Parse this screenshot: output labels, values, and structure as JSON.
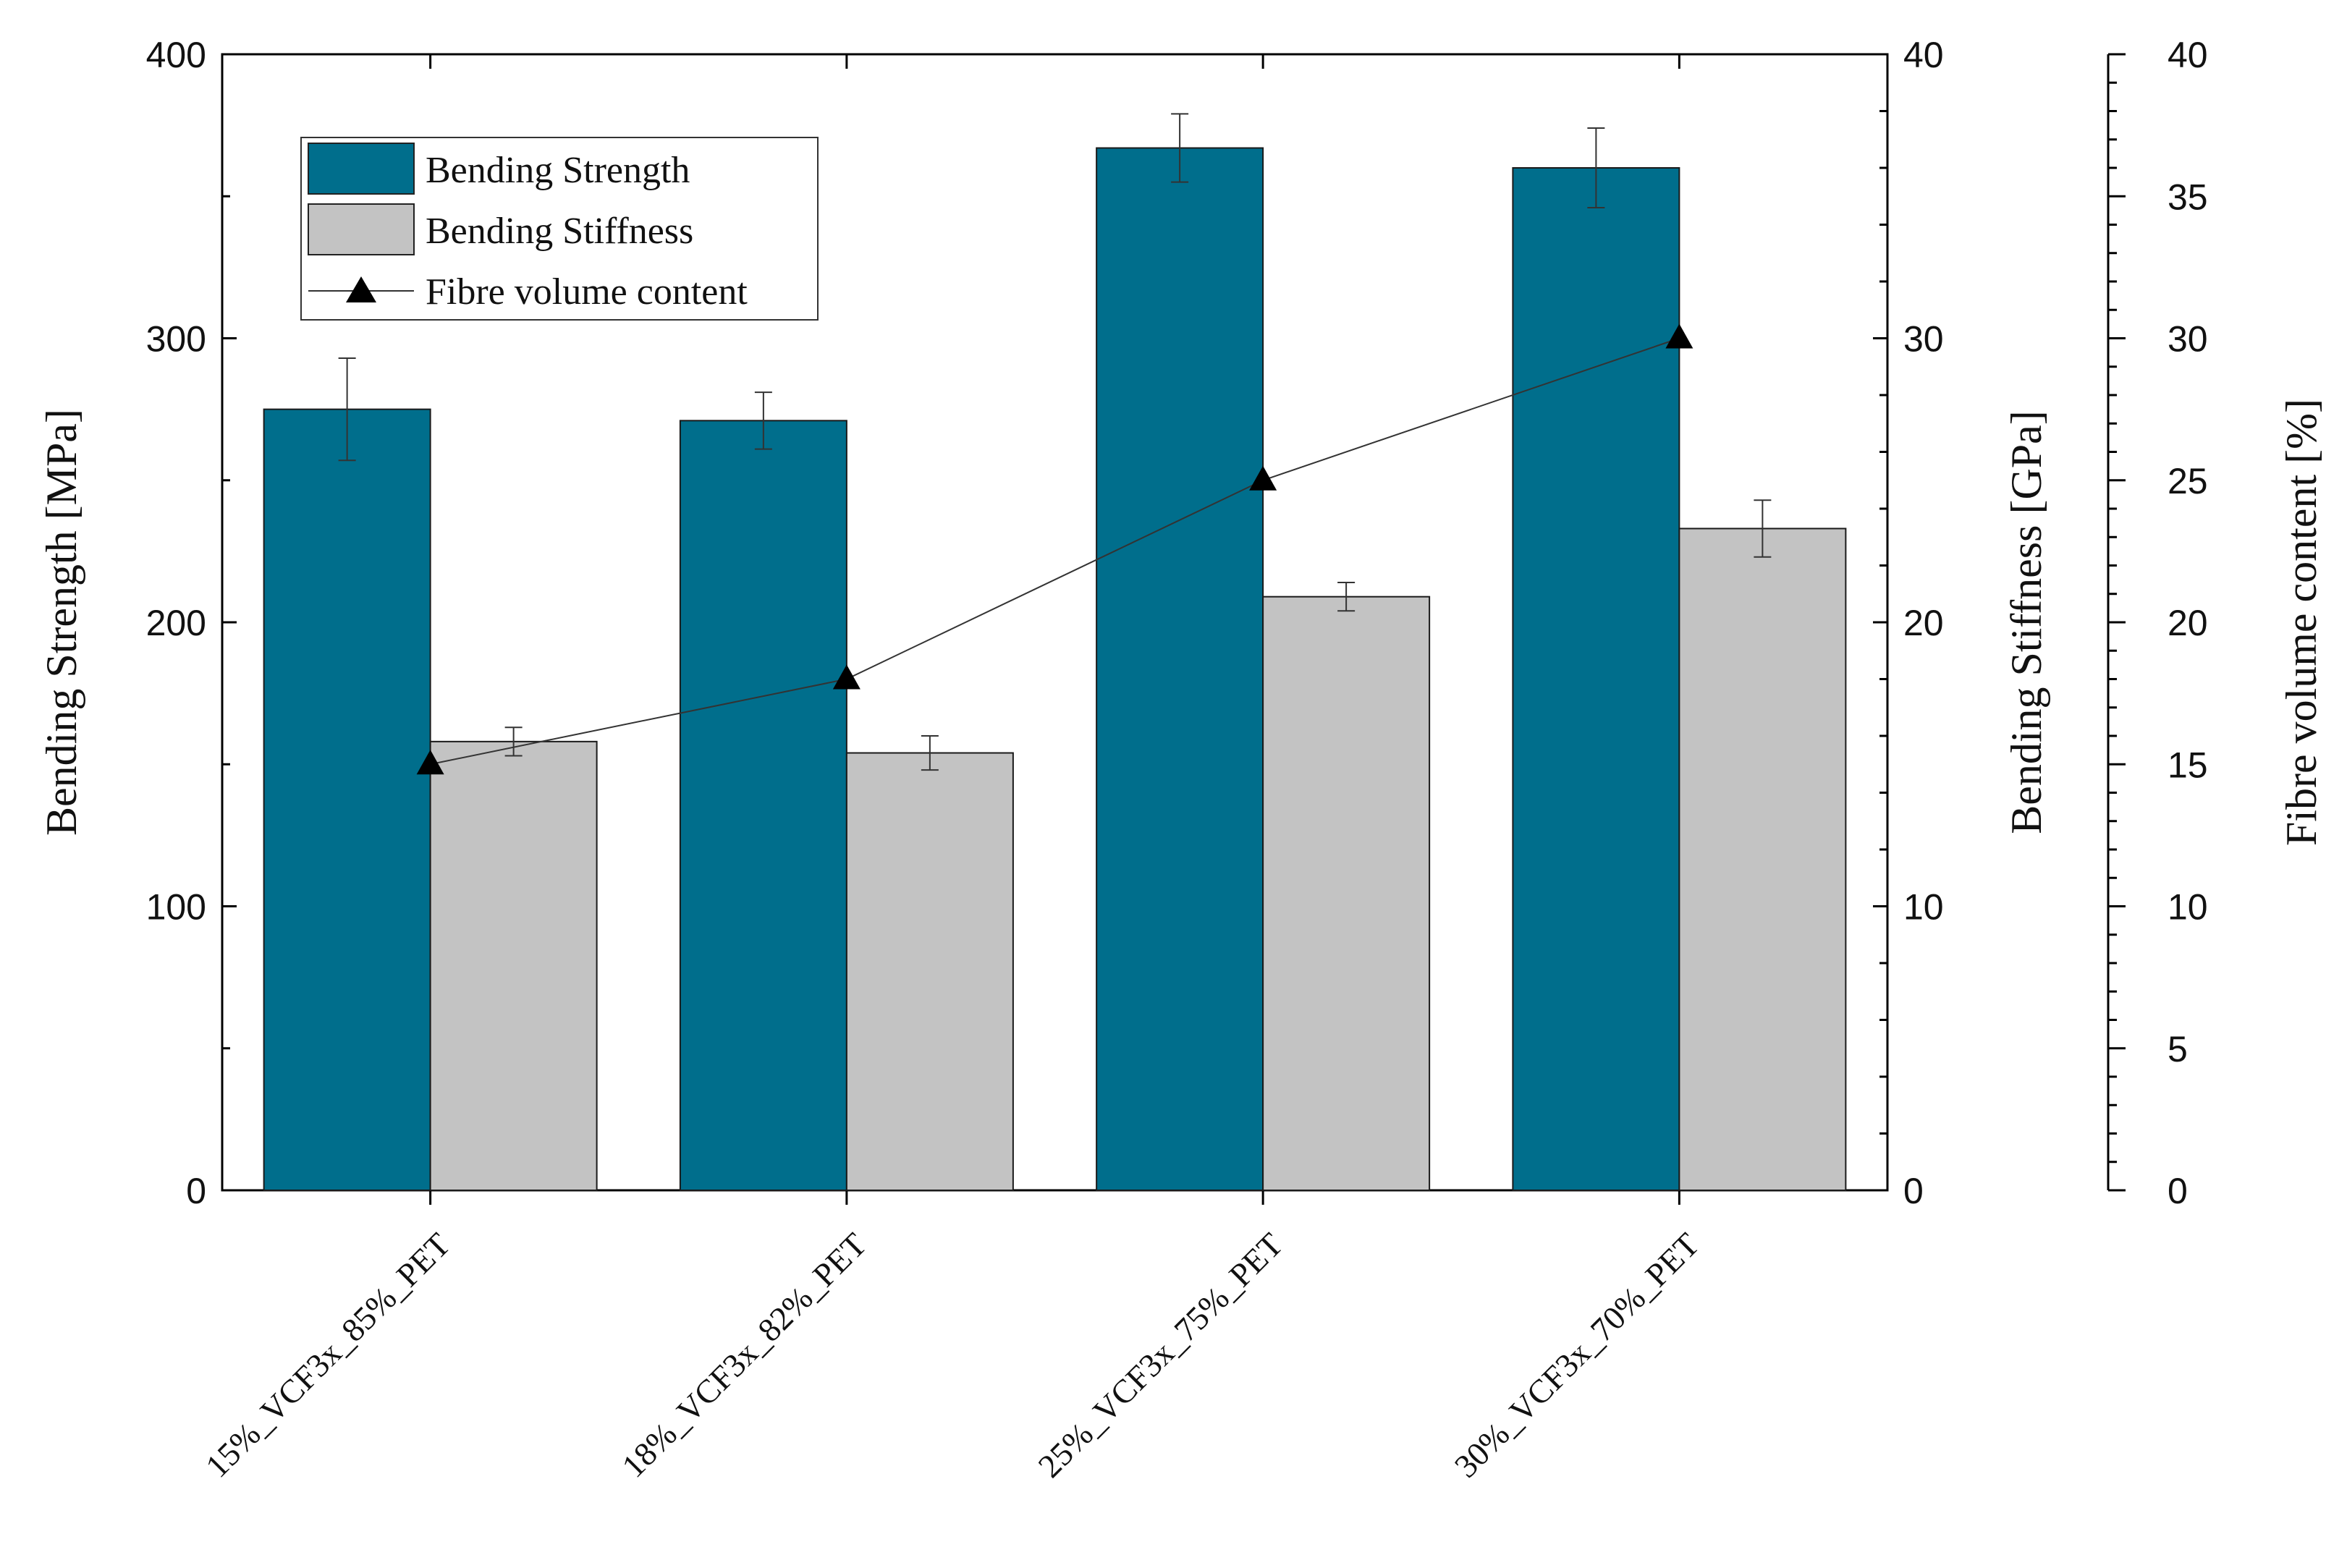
{
  "chart_data": {
    "type": "bar",
    "categories": [
      "15%_VCF3x_85%_PET",
      "18%_VCF3x_82%_PET",
      "25%_VCF3x_75%_PET",
      "30%_VCF3x_70%_PET"
    ],
    "series": [
      {
        "name": "Bending Strength",
        "axis": "left",
        "kind": "bar",
        "color": "#006e8c",
        "values": [
          275,
          271,
          367,
          360
        ],
        "errors": [
          18,
          10,
          12,
          14
        ]
      },
      {
        "name": "Bending Stiffness",
        "axis": "right1",
        "kind": "bar",
        "color": "#c3c3c3",
        "values": [
          15.8,
          15.4,
          20.9,
          23.3
        ],
        "errors": [
          0.5,
          0.6,
          0.5,
          1.0
        ]
      },
      {
        "name": "Fibre volume content",
        "axis": "right2",
        "kind": "line",
        "color": "#000000",
        "values": [
          15,
          18,
          25,
          30
        ]
      }
    ],
    "axes": {
      "left": {
        "label": "Bending Strength [MPa]",
        "ylim": [
          0,
          400
        ],
        "ticks": [
          0,
          100,
          200,
          300,
          400
        ],
        "minor_step": 50
      },
      "right1": {
        "label": "Bending Stiffness [GPa]",
        "ylim": [
          0,
          40
        ],
        "ticks": [
          0,
          10,
          20,
          30,
          40
        ],
        "minor_step": 2
      },
      "right2": {
        "label": "Fibre volume content [%]",
        "ylim": [
          0,
          40
        ],
        "ticks": [
          0,
          5,
          10,
          15,
          20,
          25,
          30,
          35,
          40
        ],
        "minor_step": 1
      }
    },
    "legend": {
      "position": "top-left",
      "entries": [
        "Bending Strength",
        "Bending Stiffness",
        "Fibre volume content"
      ]
    }
  }
}
